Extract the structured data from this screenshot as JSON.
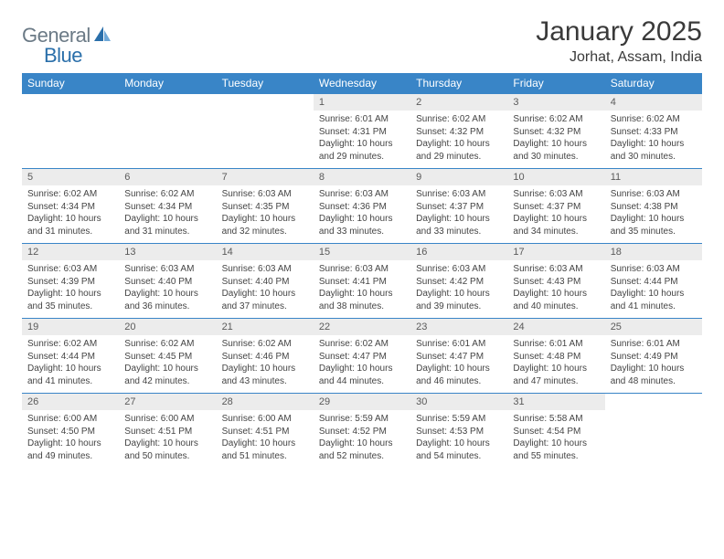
{
  "logo": {
    "text1": "General",
    "text2": "Blue"
  },
  "title": "January 2025",
  "location": "Jorhat, Assam, India",
  "colors": {
    "header_bg": "#3985c7",
    "header_text": "#ffffff",
    "daynum_bg": "#ececec",
    "logo_gray": "#6b7a86",
    "logo_blue": "#2a6faa"
  },
  "dayHeaders": [
    "Sunday",
    "Monday",
    "Tuesday",
    "Wednesday",
    "Thursday",
    "Friday",
    "Saturday"
  ],
  "weeks": [
    [
      null,
      null,
      null,
      {
        "n": "1",
        "sr": "6:01 AM",
        "ss": "4:31 PM",
        "dl": "10 hours and 29 minutes."
      },
      {
        "n": "2",
        "sr": "6:02 AM",
        "ss": "4:32 PM",
        "dl": "10 hours and 29 minutes."
      },
      {
        "n": "3",
        "sr": "6:02 AM",
        "ss": "4:32 PM",
        "dl": "10 hours and 30 minutes."
      },
      {
        "n": "4",
        "sr": "6:02 AM",
        "ss": "4:33 PM",
        "dl": "10 hours and 30 minutes."
      }
    ],
    [
      {
        "n": "5",
        "sr": "6:02 AM",
        "ss": "4:34 PM",
        "dl": "10 hours and 31 minutes."
      },
      {
        "n": "6",
        "sr": "6:02 AM",
        "ss": "4:34 PM",
        "dl": "10 hours and 31 minutes."
      },
      {
        "n": "7",
        "sr": "6:03 AM",
        "ss": "4:35 PM",
        "dl": "10 hours and 32 minutes."
      },
      {
        "n": "8",
        "sr": "6:03 AM",
        "ss": "4:36 PM",
        "dl": "10 hours and 33 minutes."
      },
      {
        "n": "9",
        "sr": "6:03 AM",
        "ss": "4:37 PM",
        "dl": "10 hours and 33 minutes."
      },
      {
        "n": "10",
        "sr": "6:03 AM",
        "ss": "4:37 PM",
        "dl": "10 hours and 34 minutes."
      },
      {
        "n": "11",
        "sr": "6:03 AM",
        "ss": "4:38 PM",
        "dl": "10 hours and 35 minutes."
      }
    ],
    [
      {
        "n": "12",
        "sr": "6:03 AM",
        "ss": "4:39 PM",
        "dl": "10 hours and 35 minutes."
      },
      {
        "n": "13",
        "sr": "6:03 AM",
        "ss": "4:40 PM",
        "dl": "10 hours and 36 minutes."
      },
      {
        "n": "14",
        "sr": "6:03 AM",
        "ss": "4:40 PM",
        "dl": "10 hours and 37 minutes."
      },
      {
        "n": "15",
        "sr": "6:03 AM",
        "ss": "4:41 PM",
        "dl": "10 hours and 38 minutes."
      },
      {
        "n": "16",
        "sr": "6:03 AM",
        "ss": "4:42 PM",
        "dl": "10 hours and 39 minutes."
      },
      {
        "n": "17",
        "sr": "6:03 AM",
        "ss": "4:43 PM",
        "dl": "10 hours and 40 minutes."
      },
      {
        "n": "18",
        "sr": "6:03 AM",
        "ss": "4:44 PM",
        "dl": "10 hours and 41 minutes."
      }
    ],
    [
      {
        "n": "19",
        "sr": "6:02 AM",
        "ss": "4:44 PM",
        "dl": "10 hours and 41 minutes."
      },
      {
        "n": "20",
        "sr": "6:02 AM",
        "ss": "4:45 PM",
        "dl": "10 hours and 42 minutes."
      },
      {
        "n": "21",
        "sr": "6:02 AM",
        "ss": "4:46 PM",
        "dl": "10 hours and 43 minutes."
      },
      {
        "n": "22",
        "sr": "6:02 AM",
        "ss": "4:47 PM",
        "dl": "10 hours and 44 minutes."
      },
      {
        "n": "23",
        "sr": "6:01 AM",
        "ss": "4:47 PM",
        "dl": "10 hours and 46 minutes."
      },
      {
        "n": "24",
        "sr": "6:01 AM",
        "ss": "4:48 PM",
        "dl": "10 hours and 47 minutes."
      },
      {
        "n": "25",
        "sr": "6:01 AM",
        "ss": "4:49 PM",
        "dl": "10 hours and 48 minutes."
      }
    ],
    [
      {
        "n": "26",
        "sr": "6:00 AM",
        "ss": "4:50 PM",
        "dl": "10 hours and 49 minutes."
      },
      {
        "n": "27",
        "sr": "6:00 AM",
        "ss": "4:51 PM",
        "dl": "10 hours and 50 minutes."
      },
      {
        "n": "28",
        "sr": "6:00 AM",
        "ss": "4:51 PM",
        "dl": "10 hours and 51 minutes."
      },
      {
        "n": "29",
        "sr": "5:59 AM",
        "ss": "4:52 PM",
        "dl": "10 hours and 52 minutes."
      },
      {
        "n": "30",
        "sr": "5:59 AM",
        "ss": "4:53 PM",
        "dl": "10 hours and 54 minutes."
      },
      {
        "n": "31",
        "sr": "5:58 AM",
        "ss": "4:54 PM",
        "dl": "10 hours and 55 minutes."
      },
      null
    ]
  ],
  "labels": {
    "sunrise": "Sunrise:",
    "sunset": "Sunset:",
    "daylight": "Daylight:"
  }
}
